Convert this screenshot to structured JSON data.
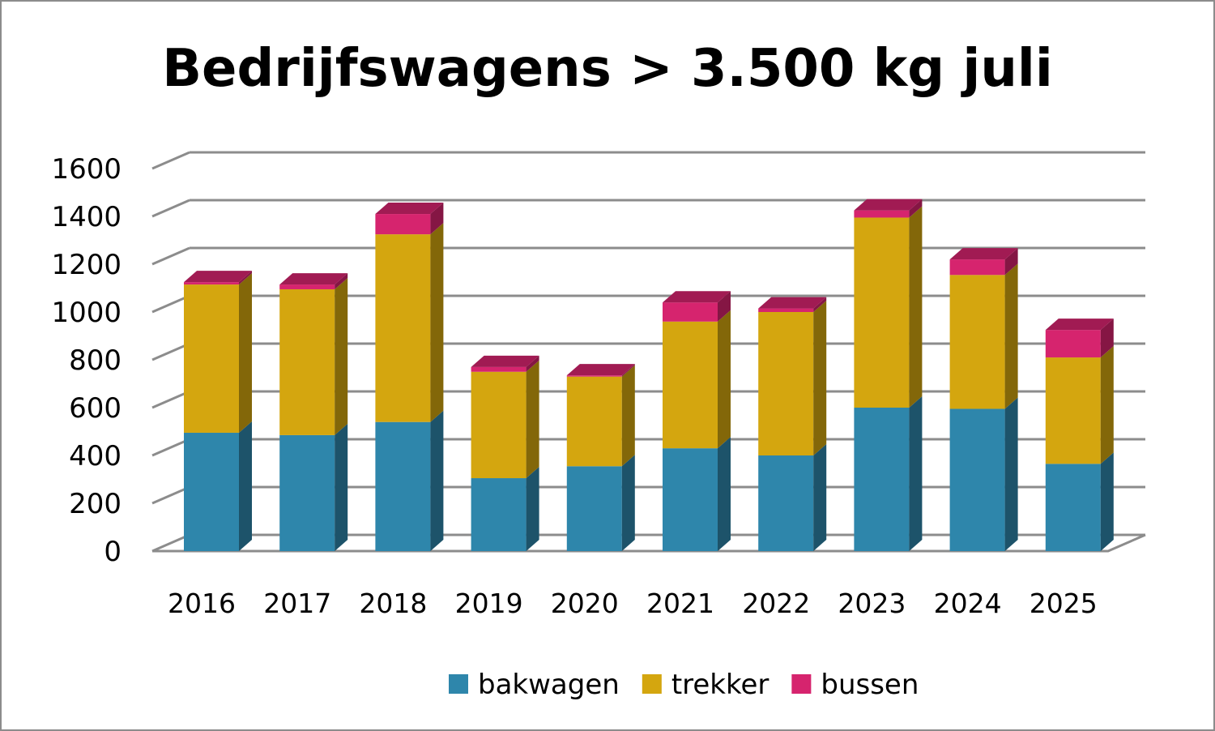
{
  "chart_data": {
    "type": "bar",
    "stacked": true,
    "style": "3d-column",
    "title": "Bedrijfswagens > 3.500 kg juli",
    "categories": [
      "2016",
      "2017",
      "2018",
      "2019",
      "2020",
      "2021",
      "2022",
      "2023",
      "2024",
      "2025"
    ],
    "series": [
      {
        "name": "bakwagen",
        "color": "#2e86ab",
        "values": [
          495,
          485,
          540,
          305,
          355,
          430,
          400,
          600,
          595,
          365
        ]
      },
      {
        "name": "trekker",
        "color": "#d4a60f",
        "values": [
          620,
          610,
          785,
          445,
          375,
          530,
          600,
          795,
          560,
          445
        ]
      },
      {
        "name": "bussen",
        "color": "#d6246e",
        "values": [
          10,
          20,
          85,
          20,
          5,
          80,
          15,
          30,
          65,
          115
        ]
      }
    ],
    "yticks": [
      "0",
      "200",
      "400",
      "600",
      "800",
      "1000",
      "1200",
      "1400",
      "1600"
    ],
    "ylim": [
      0,
      1600
    ],
    "grid": true,
    "legend_position": "bottom"
  }
}
